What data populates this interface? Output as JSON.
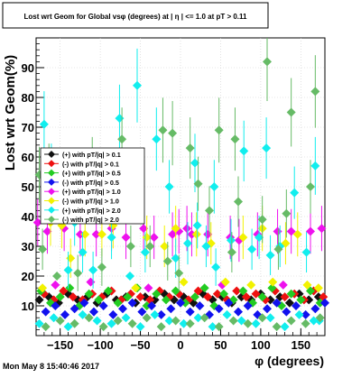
{
  "title": "Lost wrt Geom for Global vsφ (degrees) at | η | <= 1.0 at pT > 0.11",
  "timestamp": "Mon May  8 15:40:46 2017",
  "chart_data": {
    "type": "scatter",
    "title": "Lost wrt Geom for Global vsφ (degrees) at | η | <= 1.0 at pT > 0.11",
    "xlabel": "φ (degrees)",
    "ylabel": "Lost wrt Geom(%)",
    "xlim": [
      -180,
      180
    ],
    "ylim": [
      0,
      100
    ],
    "xticks": [
      -150,
      -100,
      -50,
      0,
      50,
      100,
      150
    ],
    "xtick_labels": [
      "−150",
      "−100",
      "−50",
      "0",
      "50",
      "100",
      "150"
    ],
    "yticks": [
      10,
      20,
      30,
      40,
      50,
      60,
      70,
      80,
      90
    ],
    "grid": true,
    "legend_position": "top-left",
    "series": [
      {
        "name": "(+) with pT/|q| > 0.1",
        "color": "#111111",
        "points": [
          [
            -176,
            12
          ],
          [
            -164,
            13
          ],
          [
            -152,
            11
          ],
          [
            -140,
            14
          ],
          [
            -128,
            12
          ],
          [
            -116,
            13
          ],
          [
            -104,
            11
          ],
          [
            -92,
            14
          ],
          [
            -80,
            12
          ],
          [
            -68,
            13
          ],
          [
            -56,
            11
          ],
          [
            -44,
            13
          ],
          [
            -32,
            12
          ],
          [
            -20,
            14
          ],
          [
            -8,
            12
          ],
          [
            4,
            13
          ],
          [
            16,
            11
          ],
          [
            28,
            14
          ],
          [
            40,
            12
          ],
          [
            52,
            13
          ],
          [
            64,
            11
          ],
          [
            76,
            13
          ],
          [
            88,
            12
          ],
          [
            100,
            14
          ],
          [
            112,
            12
          ],
          [
            124,
            13
          ],
          [
            136,
            11
          ],
          [
            148,
            14
          ],
          [
            160,
            12
          ],
          [
            172,
            13
          ]
        ]
      },
      {
        "name": "(-) with pT/|q| > 0.1",
        "color": "#ee1111",
        "points": [
          [
            -170,
            14
          ],
          [
            -158,
            12
          ],
          [
            -146,
            15
          ],
          [
            -134,
            13
          ],
          [
            -122,
            12
          ],
          [
            -110,
            14
          ],
          [
            -98,
            13
          ],
          [
            -86,
            15
          ],
          [
            -74,
            12
          ],
          [
            -62,
            14
          ],
          [
            -50,
            13
          ],
          [
            -38,
            12
          ],
          [
            -26,
            15
          ],
          [
            -14,
            13
          ],
          [
            -2,
            14
          ],
          [
            10,
            12
          ],
          [
            22,
            15
          ],
          [
            34,
            13
          ],
          [
            46,
            14
          ],
          [
            58,
            12
          ],
          [
            70,
            15
          ],
          [
            82,
            13
          ],
          [
            94,
            14
          ],
          [
            106,
            12
          ],
          [
            118,
            15
          ],
          [
            130,
            13
          ],
          [
            142,
            14
          ],
          [
            154,
            12
          ],
          [
            166,
            15
          ],
          [
            178,
            13
          ]
        ]
      },
      {
        "name": "(+) with pT/|q| > 0.5",
        "color": "#22cc22",
        "points": [
          [
            -174,
            15
          ],
          [
            -162,
            11
          ],
          [
            -150,
            13
          ],
          [
            -138,
            16
          ],
          [
            -126,
            10
          ],
          [
            -114,
            14
          ],
          [
            -102,
            12
          ],
          [
            -90,
            15
          ],
          [
            -78,
            11
          ],
          [
            -66,
            13
          ],
          [
            -54,
            16
          ],
          [
            -42,
            10
          ],
          [
            -30,
            14
          ],
          [
            -18,
            12
          ],
          [
            -6,
            15
          ],
          [
            6,
            11
          ],
          [
            18,
            13
          ],
          [
            30,
            16
          ],
          [
            42,
            10
          ],
          [
            54,
            14
          ],
          [
            66,
            12
          ],
          [
            78,
            15
          ],
          [
            90,
            11
          ],
          [
            102,
            13
          ],
          [
            114,
            16
          ],
          [
            126,
            10
          ],
          [
            138,
            14
          ],
          [
            150,
            12
          ],
          [
            162,
            15
          ],
          [
            174,
            11
          ]
        ]
      },
      {
        "name": "(-) with pT/|q| > 0.5",
        "color": "#1111ee",
        "points": [
          [
            -168,
            8
          ],
          [
            -156,
            10
          ],
          [
            -144,
            7
          ],
          [
            -132,
            9
          ],
          [
            -120,
            11
          ],
          [
            -108,
            8
          ],
          [
            -96,
            10
          ],
          [
            -84,
            7
          ],
          [
            -72,
            9
          ],
          [
            -60,
            11
          ],
          [
            -48,
            8
          ],
          [
            -36,
            10
          ],
          [
            -24,
            7
          ],
          [
            -12,
            9
          ],
          [
            0,
            11
          ],
          [
            12,
            8
          ],
          [
            24,
            10
          ],
          [
            36,
            7
          ],
          [
            48,
            9
          ],
          [
            60,
            11
          ],
          [
            72,
            8
          ],
          [
            84,
            10
          ],
          [
            96,
            7
          ],
          [
            108,
            9
          ],
          [
            120,
            11
          ],
          [
            132,
            8
          ],
          [
            144,
            10
          ],
          [
            156,
            7
          ],
          [
            168,
            9
          ],
          [
            180,
            11
          ]
        ]
      },
      {
        "name": "(+) with pT/|q| > 1.0",
        "color": "#ee11ee",
        "points": [
          [
            -178,
            38
          ],
          [
            -166,
            35
          ],
          [
            -145,
            36
          ],
          [
            -125,
            34
          ],
          [
            -105,
            34
          ],
          [
            -86,
            36
          ],
          [
            -68,
            33
          ],
          [
            -46,
            36
          ],
          [
            -33,
            33
          ],
          [
            -10,
            34
          ],
          [
            -2,
            35
          ],
          [
            8,
            36
          ],
          [
            14,
            34
          ],
          [
            34,
            34
          ],
          [
            62,
            33
          ],
          [
            73,
            32
          ],
          [
            96,
            34
          ],
          [
            121,
            35
          ],
          [
            138,
            35
          ],
          [
            162,
            35
          ],
          [
            176,
            36
          ],
          [
            -156,
            17
          ],
          [
            -112,
            18
          ],
          [
            -40,
            16
          ],
          [
            52,
            17
          ],
          [
            128,
            17
          ]
        ]
      },
      {
        "name": "(-) with pT/|q| > 1.0",
        "color": "#f2f200",
        "points": [
          [
            -172,
            16
          ],
          [
            -162,
            38
          ],
          [
            -148,
            37
          ],
          [
            -137,
            26
          ],
          [
            -119,
            34
          ],
          [
            -98,
            34
          ],
          [
            -84,
            37
          ],
          [
            -56,
            16
          ],
          [
            -42,
            33
          ],
          [
            -20,
            30
          ],
          [
            -6,
            36
          ],
          [
            4,
            18
          ],
          [
            20,
            34
          ],
          [
            38,
            31
          ],
          [
            56,
            18
          ],
          [
            78,
            33
          ],
          [
            88,
            17
          ],
          [
            102,
            36
          ],
          [
            115,
            18
          ],
          [
            131,
            31
          ],
          [
            146,
            34
          ],
          [
            158,
            17
          ],
          [
            172,
            16
          ]
        ]
      },
      {
        "name": "(+) with pT/|q| > 2.0",
        "color": "#11eeee",
        "points": [
          [
            -170,
            71
          ],
          [
            -161,
            55
          ],
          [
            -151,
            52
          ],
          [
            -140,
            22
          ],
          [
            -132,
            38
          ],
          [
            -122,
            28
          ],
          [
            -109,
            22
          ],
          [
            -86,
            33
          ],
          [
            -76,
            73
          ],
          [
            -63,
            20
          ],
          [
            -54,
            84
          ],
          [
            -44,
            28
          ],
          [
            -30,
            66
          ],
          [
            -14,
            50
          ],
          [
            -6,
            26
          ],
          [
            9,
            31
          ],
          [
            18,
            58
          ],
          [
            21,
            37
          ],
          [
            32,
            30
          ],
          [
            42,
            50
          ],
          [
            44,
            23
          ],
          [
            63,
            32
          ],
          [
            79,
            62
          ],
          [
            89,
            29
          ],
          [
            98,
            33
          ],
          [
            107,
            63
          ],
          [
            112,
            27
          ],
          [
            124,
            30
          ],
          [
            142,
            48
          ],
          [
            157,
            28
          ],
          [
            168,
            57
          ],
          [
            173,
            5
          ],
          [
            -176,
            4
          ],
          [
            -158,
            6
          ],
          [
            -140,
            3
          ],
          [
            -122,
            7
          ],
          [
            -104,
            5
          ],
          [
            -86,
            4
          ],
          [
            -68,
            6
          ],
          [
            -50,
            3
          ],
          [
            -32,
            7
          ],
          [
            -14,
            5
          ],
          [
            4,
            4
          ],
          [
            22,
            6
          ],
          [
            40,
            3
          ],
          [
            58,
            7
          ],
          [
            76,
            5
          ],
          [
            94,
            4
          ],
          [
            112,
            6
          ],
          [
            130,
            3
          ],
          [
            148,
            7
          ],
          [
            166,
            5
          ]
        ]
      },
      {
        "name": "(-) with pT/|q| > 2.0",
        "color": "#66bb66",
        "points": [
          [
            -176,
            54
          ],
          [
            -172,
            29
          ],
          [
            -164,
            55
          ],
          [
            -154,
            20
          ],
          [
            -145,
            49
          ],
          [
            -128,
            21
          ],
          [
            -110,
            57
          ],
          [
            -98,
            23
          ],
          [
            -73,
            66
          ],
          [
            -62,
            30
          ],
          [
            -38,
            30
          ],
          [
            -22,
            69
          ],
          [
            -16,
            25
          ],
          [
            -10,
            68
          ],
          [
            -2,
            21
          ],
          [
            12,
            63
          ],
          [
            22,
            51
          ],
          [
            36,
            42
          ],
          [
            48,
            69
          ],
          [
            64,
            28
          ],
          [
            68,
            66
          ],
          [
            72,
            45
          ],
          [
            102,
            39
          ],
          [
            108,
            92
          ],
          [
            122,
            29
          ],
          [
            132,
            41
          ],
          [
            138,
            75
          ],
          [
            162,
            50
          ],
          [
            168,
            82
          ],
          [
            -168,
            3
          ],
          [
            -150,
            5
          ],
          [
            -132,
            4
          ],
          [
            -114,
            6
          ],
          [
            -96,
            3
          ],
          [
            -78,
            5
          ],
          [
            -60,
            4
          ],
          [
            -42,
            6
          ],
          [
            -24,
            3
          ],
          [
            -6,
            5
          ],
          [
            12,
            4
          ],
          [
            30,
            6
          ],
          [
            48,
            3
          ],
          [
            66,
            5
          ],
          [
            84,
            4
          ],
          [
            102,
            6
          ],
          [
            120,
            3
          ],
          [
            138,
            5
          ],
          [
            156,
            4
          ],
          [
            174,
            6
          ]
        ]
      }
    ]
  }
}
